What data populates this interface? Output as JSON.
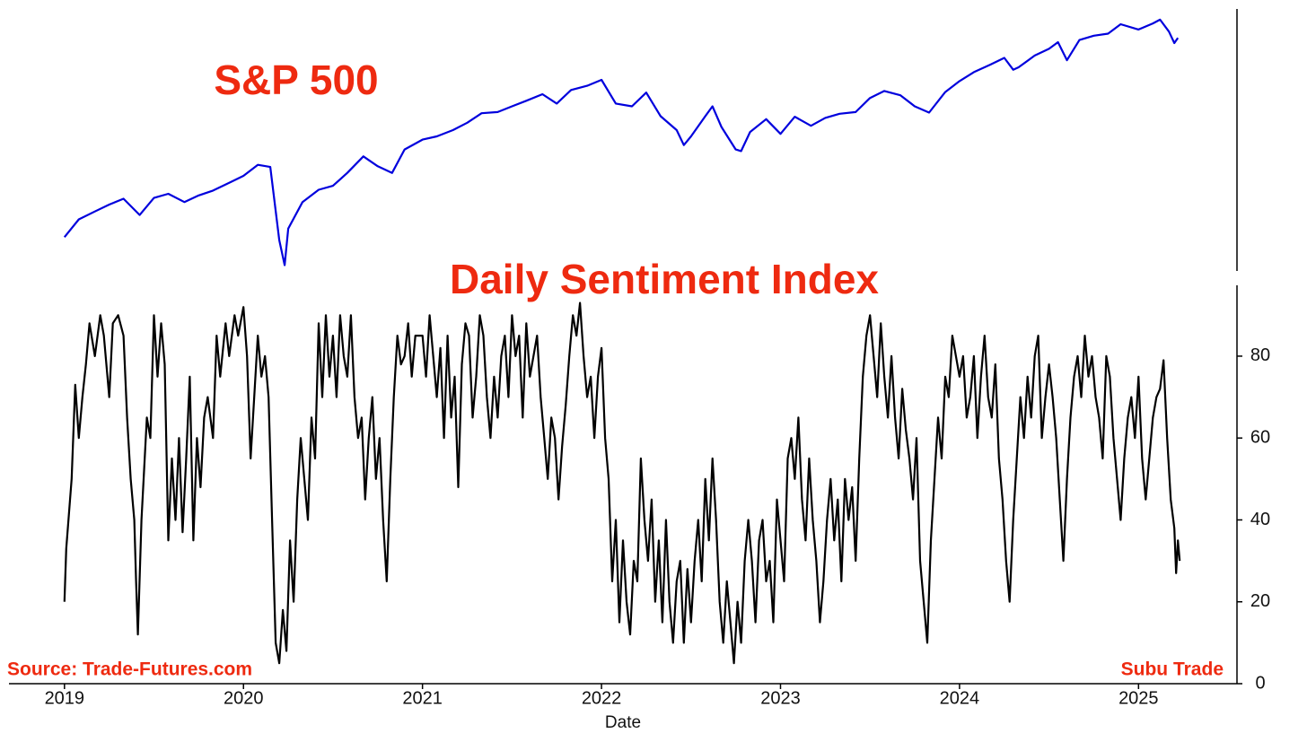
{
  "chart_data": [
    {
      "type": "line",
      "title": "S&P 500",
      "color": "#0000dd",
      "log_scale": true,
      "xlim": [
        2018.69,
        2025.55
      ],
      "ylim": [
        2200,
        6420
      ],
      "x": [
        2019.0,
        2019.08,
        2019.17,
        2019.25,
        2019.33,
        2019.42,
        2019.5,
        2019.58,
        2019.67,
        2019.75,
        2019.83,
        2019.92,
        2020.0,
        2020.08,
        2020.15,
        2020.2,
        2020.23,
        2020.25,
        2020.33,
        2020.42,
        2020.5,
        2020.58,
        2020.67,
        2020.75,
        2020.83,
        2020.9,
        2021.0,
        2021.08,
        2021.17,
        2021.25,
        2021.33,
        2021.42,
        2021.5,
        2021.58,
        2021.67,
        2021.75,
        2021.83,
        2021.92,
        2022.0,
        2022.08,
        2022.17,
        2022.25,
        2022.33,
        2022.42,
        2022.46,
        2022.5,
        2022.58,
        2022.62,
        2022.67,
        2022.75,
        2022.78,
        2022.83,
        2022.92,
        2023.0,
        2023.08,
        2023.17,
        2023.25,
        2023.33,
        2023.42,
        2023.5,
        2023.58,
        2023.67,
        2023.75,
        2023.83,
        2023.92,
        2024.0,
        2024.08,
        2024.17,
        2024.25,
        2024.3,
        2024.33,
        2024.42,
        2024.5,
        2024.55,
        2024.6,
        2024.67,
        2024.75,
        2024.83,
        2024.9,
        2025.0,
        2025.08,
        2025.12,
        2025.17,
        2025.2,
        2025.22
      ],
      "values": [
        2510,
        2700,
        2790,
        2870,
        2940,
        2750,
        2950,
        3000,
        2900,
        2980,
        3040,
        3140,
        3230,
        3380,
        3350,
        2480,
        2237,
        2600,
        2900,
        3050,
        3100,
        3270,
        3500,
        3360,
        3270,
        3600,
        3750,
        3800,
        3900,
        4020,
        4180,
        4200,
        4300,
        4400,
        4520,
        4350,
        4600,
        4680,
        4796,
        4350,
        4300,
        4550,
        4130,
        3900,
        3666,
        3800,
        4130,
        4300,
        3950,
        3600,
        3577,
        3870,
        4080,
        3840,
        4120,
        3970,
        4100,
        4170,
        4200,
        4450,
        4580,
        4500,
        4300,
        4190,
        4560,
        4770,
        4950,
        5100,
        5250,
        5000,
        5050,
        5300,
        5450,
        5600,
        5200,
        5650,
        5750,
        5800,
        6030,
        5900,
        6050,
        6144,
        5850,
        5580,
        5700
      ]
    },
    {
      "type": "line",
      "title": "Daily Sentiment Index",
      "color": "#000000",
      "x_label": "Date",
      "xlim": [
        2018.69,
        2025.55
      ],
      "ylim": [
        0,
        97.3
      ],
      "xticks": [
        2019,
        2020,
        2021,
        2022,
        2023,
        2024,
        2025
      ],
      "yticks": [
        0,
        20,
        40,
        60,
        80
      ],
      "annotations": [
        "Source: Trade-Futures.com",
        "Subu Trade"
      ],
      "x": [
        2019.0,
        2019.01,
        2019.04,
        2019.06,
        2019.08,
        2019.1,
        2019.12,
        2019.14,
        2019.17,
        2019.2,
        2019.22,
        2019.25,
        2019.27,
        2019.3,
        2019.33,
        2019.35,
        2019.37,
        2019.39,
        2019.4,
        2019.41,
        2019.43,
        2019.46,
        2019.48,
        2019.5,
        2019.52,
        2019.54,
        2019.56,
        2019.58,
        2019.6,
        2019.62,
        2019.64,
        2019.66,
        2019.68,
        2019.7,
        2019.72,
        2019.74,
        2019.76,
        2019.78,
        2019.8,
        2019.83,
        2019.85,
        2019.87,
        2019.9,
        2019.92,
        2019.95,
        2019.97,
        2020.0,
        2020.02,
        2020.04,
        2020.06,
        2020.08,
        2020.1,
        2020.12,
        2020.14,
        2020.16,
        2020.18,
        2020.2,
        2020.22,
        2020.24,
        2020.26,
        2020.28,
        2020.3,
        2020.32,
        2020.34,
        2020.36,
        2020.38,
        2020.4,
        2020.42,
        2020.44,
        2020.46,
        2020.48,
        2020.5,
        2020.52,
        2020.54,
        2020.56,
        2020.58,
        2020.6,
        2020.62,
        2020.64,
        2020.66,
        2020.68,
        2020.7,
        2020.72,
        2020.74,
        2020.76,
        2020.78,
        2020.8,
        2020.82,
        2020.84,
        2020.86,
        2020.88,
        2020.9,
        2020.92,
        2020.94,
        2020.96,
        2021.0,
        2021.02,
        2021.04,
        2021.06,
        2021.08,
        2021.1,
        2021.12,
        2021.14,
        2021.16,
        2021.18,
        2021.2,
        2021.22,
        2021.24,
        2021.26,
        2021.28,
        2021.3,
        2021.32,
        2021.34,
        2021.36,
        2021.38,
        2021.4,
        2021.42,
        2021.44,
        2021.46,
        2021.48,
        2021.5,
        2021.52,
        2021.54,
        2021.56,
        2021.58,
        2021.6,
        2021.62,
        2021.64,
        2021.66,
        2021.68,
        2021.7,
        2021.72,
        2021.74,
        2021.76,
        2021.78,
        2021.8,
        2021.82,
        2021.84,
        2021.86,
        2021.88,
        2021.9,
        2021.92,
        2021.94,
        2021.96,
        2021.98,
        2022.0,
        2022.02,
        2022.04,
        2022.06,
        2022.08,
        2022.1,
        2022.12,
        2022.14,
        2022.16,
        2022.18,
        2022.2,
        2022.22,
        2022.24,
        2022.26,
        2022.28,
        2022.3,
        2022.32,
        2022.34,
        2022.36,
        2022.38,
        2022.4,
        2022.42,
        2022.44,
        2022.46,
        2022.48,
        2022.5,
        2022.52,
        2022.54,
        2022.56,
        2022.58,
        2022.6,
        2022.62,
        2022.64,
        2022.66,
        2022.68,
        2022.7,
        2022.72,
        2022.74,
        2022.76,
        2022.78,
        2022.8,
        2022.82,
        2022.84,
        2022.86,
        2022.88,
        2022.9,
        2022.92,
        2022.94,
        2022.96,
        2022.98,
        2023.0,
        2023.02,
        2023.04,
        2023.06,
        2023.08,
        2023.1,
        2023.12,
        2023.14,
        2023.16,
        2023.18,
        2023.2,
        2023.22,
        2023.24,
        2023.26,
        2023.28,
        2023.3,
        2023.32,
        2023.34,
        2023.36,
        2023.38,
        2023.4,
        2023.42,
        2023.44,
        2023.46,
        2023.48,
        2023.5,
        2023.52,
        2023.54,
        2023.56,
        2023.58,
        2023.6,
        2023.62,
        2023.64,
        2023.66,
        2023.68,
        2023.7,
        2023.72,
        2023.74,
        2023.76,
        2023.78,
        2023.8,
        2023.82,
        2023.84,
        2023.86,
        2023.88,
        2023.9,
        2023.92,
        2023.94,
        2023.96,
        2023.98,
        2024.0,
        2024.02,
        2024.04,
        2024.06,
        2024.08,
        2024.1,
        2024.12,
        2024.14,
        2024.16,
        2024.18,
        2024.2,
        2024.22,
        2024.24,
        2024.26,
        2024.28,
        2024.3,
        2024.32,
        2024.34,
        2024.36,
        2024.38,
        2024.4,
        2024.42,
        2024.44,
        2024.46,
        2024.48,
        2024.5,
        2024.52,
        2024.54,
        2024.56,
        2024.58,
        2024.6,
        2024.62,
        2024.64,
        2024.66,
        2024.68,
        2024.7,
        2024.72,
        2024.74,
        2024.76,
        2024.78,
        2024.8,
        2024.82,
        2024.84,
        2024.86,
        2024.88,
        2024.9,
        2024.92,
        2024.94,
        2024.96,
        2024.98,
        2025.0,
        2025.02,
        2025.04,
        2025.06,
        2025.08,
        2025.1,
        2025.12,
        2025.14,
        2025.16,
        2025.18,
        2025.2,
        2025.21,
        2025.22,
        2025.23
      ],
      "values": [
        20,
        33,
        50,
        73,
        60,
        70,
        78,
        88,
        80,
        90,
        85,
        70,
        88,
        90,
        85,
        65,
        50,
        40,
        25,
        12,
        40,
        65,
        60,
        90,
        75,
        88,
        78,
        35,
        55,
        40,
        60,
        37,
        55,
        75,
        35,
        60,
        48,
        65,
        70,
        60,
        85,
        75,
        88,
        80,
        90,
        85,
        92,
        80,
        55,
        70,
        85,
        75,
        80,
        70,
        40,
        10,
        5,
        18,
        8,
        35,
        20,
        45,
        60,
        50,
        40,
        65,
        55,
        88,
        70,
        90,
        75,
        85,
        70,
        90,
        80,
        75,
        90,
        70,
        60,
        65,
        45,
        60,
        70,
        50,
        60,
        40,
        25,
        50,
        70,
        85,
        78,
        80,
        88,
        75,
        85,
        85,
        75,
        90,
        80,
        70,
        82,
        60,
        85,
        65,
        75,
        48,
        78,
        88,
        85,
        65,
        75,
        90,
        85,
        70,
        60,
        75,
        65,
        80,
        85,
        70,
        90,
        80,
        85,
        65,
        88,
        75,
        80,
        85,
        70,
        60,
        50,
        65,
        60,
        45,
        58,
        68,
        80,
        90,
        85,
        93,
        80,
        70,
        75,
        60,
        75,
        82,
        60,
        50,
        25,
        40,
        15,
        35,
        20,
        12,
        30,
        25,
        55,
        40,
        30,
        45,
        20,
        35,
        15,
        40,
        20,
        10,
        25,
        30,
        10,
        28,
        15,
        30,
        40,
        25,
        50,
        35,
        55,
        40,
        20,
        10,
        25,
        15,
        5,
        20,
        10,
        30,
        40,
        30,
        15,
        35,
        40,
        25,
        30,
        15,
        45,
        35,
        25,
        55,
        60,
        50,
        65,
        45,
        35,
        55,
        40,
        30,
        15,
        25,
        40,
        50,
        35,
        45,
        25,
        50,
        40,
        48,
        30,
        55,
        75,
        85,
        90,
        80,
        70,
        88,
        75,
        65,
        80,
        65,
        55,
        72,
        62,
        55,
        45,
        60,
        30,
        20,
        10,
        35,
        50,
        65,
        55,
        75,
        70,
        85,
        80,
        75,
        80,
        65,
        70,
        80,
        60,
        75,
        85,
        70,
        65,
        78,
        55,
        45,
        30,
        20,
        40,
        55,
        70,
        60,
        75,
        65,
        80,
        85,
        60,
        70,
        78,
        70,
        60,
        45,
        30,
        50,
        65,
        75,
        80,
        70,
        85,
        75,
        80,
        70,
        65,
        55,
        80,
        75,
        60,
        50,
        40,
        55,
        65,
        70,
        60,
        75,
        55,
        45,
        55,
        65,
        70,
        72,
        79,
        60,
        45,
        38,
        27,
        35,
        30
      ]
    }
  ]
}
